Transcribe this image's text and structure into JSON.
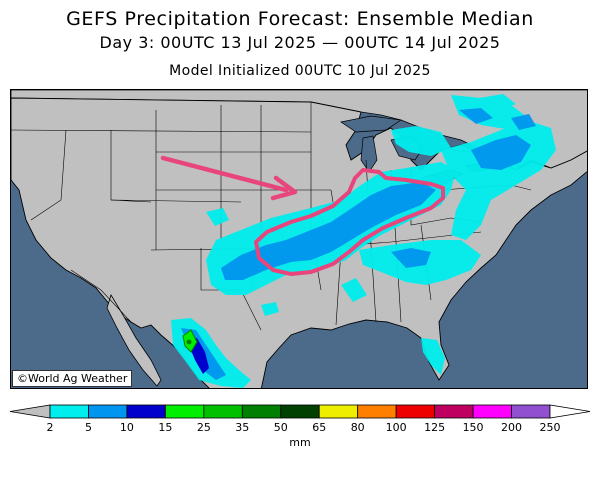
{
  "header": {
    "title": "GEFS Precipitation Forecast: Ensemble Median",
    "valid_period": "Day 3: 00UTC 13 Jul 2025 — 00UTC 14 Jul 2025",
    "init": "Model Initialized 00UTC 10 Jul 2025"
  },
  "map": {
    "credit": "©World Ag Weather",
    "ocean_color": "#4c6a8a",
    "land_color": "#c0c0c0",
    "annotation_color": "#e8457c",
    "annotation_icons": [
      "arrow",
      "outline-loop"
    ]
  },
  "legend": {
    "units": "mm",
    "ticks": [
      "2",
      "5",
      "10",
      "15",
      "25",
      "35",
      "50",
      "65",
      "80",
      "100",
      "125",
      "150",
      "200",
      "250"
    ],
    "colors": [
      "#00eeee",
      "#0095ee",
      "#0000cc",
      "#00ee00",
      "#00c000",
      "#008000",
      "#004000",
      "#eeee00",
      "#ff8000",
      "#ee0000",
      "#c00060",
      "#ff00ff",
      "#9050d0"
    ],
    "end_color": "#c0c0c0"
  }
}
